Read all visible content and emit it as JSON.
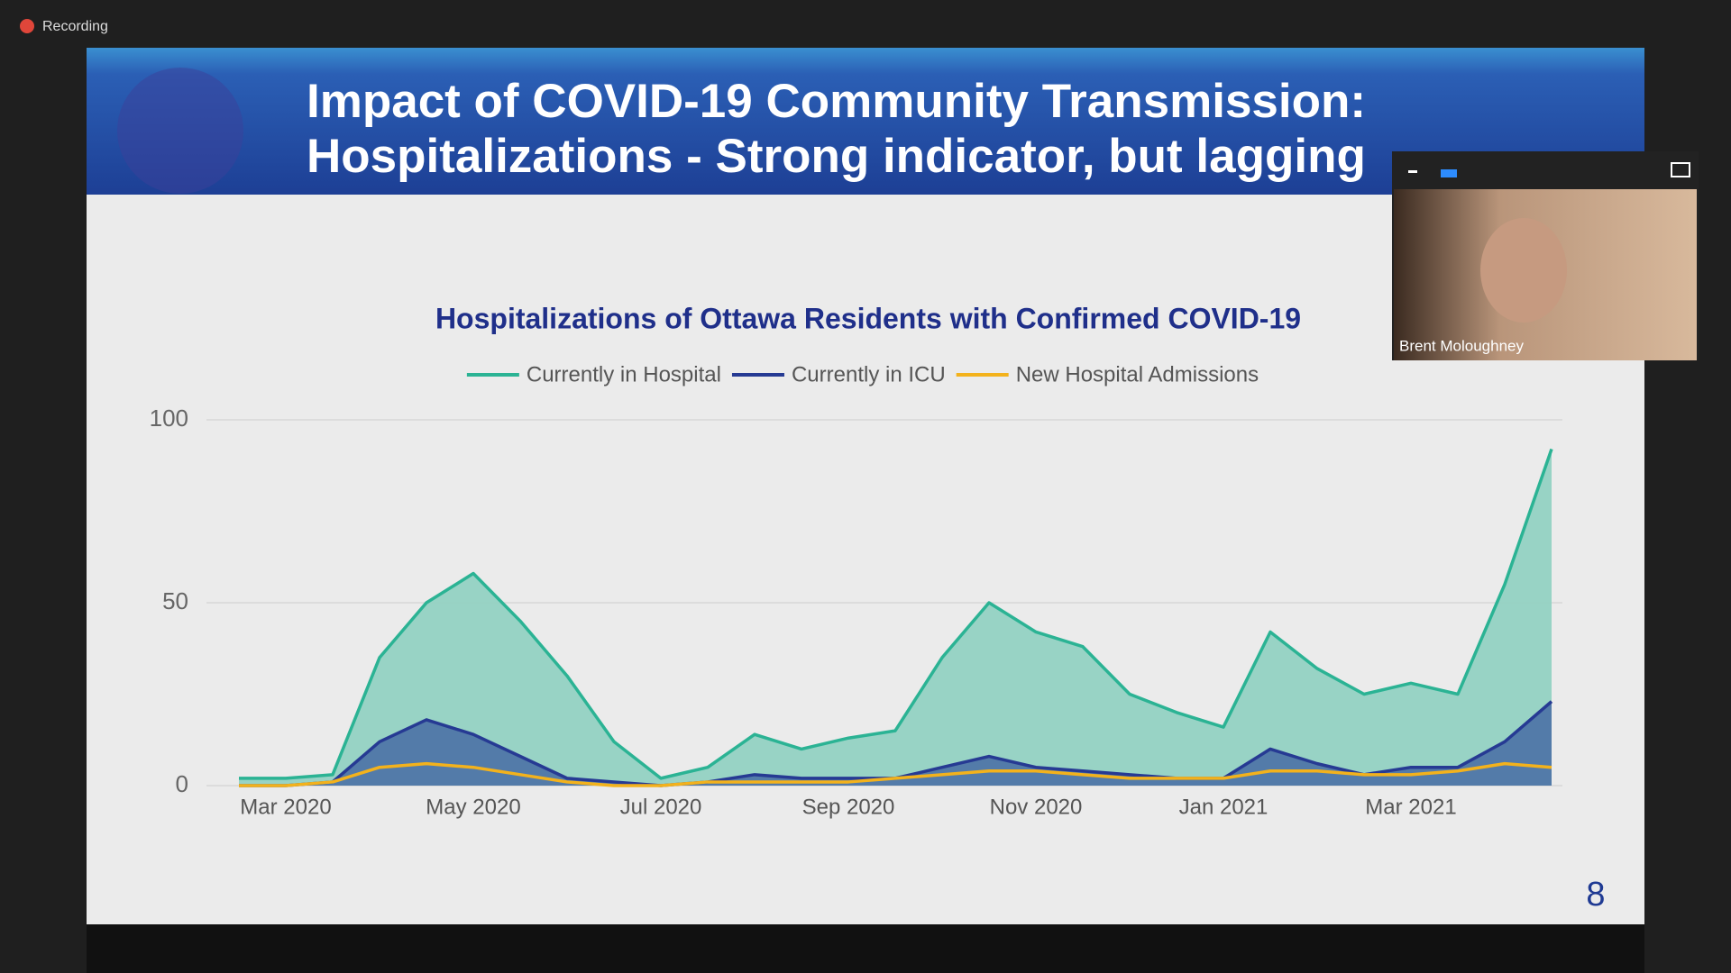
{
  "ui": {
    "recording": "Recording",
    "slide_title": [
      "Impact of COVID-19 Community Transmission:",
      "Hospitalizations - Strong indicator, but lagging"
    ],
    "page_number": "8",
    "participant": "Brent Moloughney"
  },
  "chart_data": {
    "type": "area",
    "title": "Hospitalizations of Ottawa Residents with Confirmed COVID-19",
    "categories": [
      null,
      "Mar 2020",
      null,
      null,
      null,
      "May 2020",
      null,
      null,
      null,
      "Jul 2020",
      null,
      null,
      null,
      "Sep 2020",
      null,
      null,
      null,
      "Nov 2020",
      null,
      null,
      null,
      "Jan 2021",
      null,
      null,
      null,
      "Mar 2021",
      null,
      null,
      null
    ],
    "series": [
      {
        "name": "Currently in Hospital",
        "color": "#2bb394",
        "fill": "#93d2c3",
        "values": [
          2,
          2,
          3,
          35,
          50,
          58,
          45,
          30,
          12,
          2,
          5,
          14,
          10,
          13,
          15,
          35,
          50,
          42,
          38,
          25,
          20,
          16,
          42,
          32,
          25,
          28,
          25,
          55,
          92
        ]
      },
      {
        "name": "Currently in ICU",
        "color": "#263a93",
        "fill": "#4f76a8",
        "values": [
          0,
          0,
          1,
          12,
          18,
          14,
          8,
          2,
          1,
          0,
          1,
          3,
          2,
          2,
          2,
          5,
          8,
          5,
          4,
          3,
          2,
          2,
          10,
          6,
          3,
          5,
          5,
          12,
          23
        ]
      },
      {
        "name": "New Hospital Admissions",
        "color": "#f3b21c",
        "values": [
          0,
          0,
          1,
          5,
          6,
          5,
          3,
          1,
          0,
          0,
          1,
          1,
          1,
          1,
          2,
          3,
          4,
          4,
          3,
          2,
          2,
          2,
          4,
          4,
          3,
          3,
          4,
          6,
          5
        ]
      }
    ],
    "ylim": [
      0,
      100
    ],
    "yticks": [
      0,
      50,
      100
    ],
    "grid": true,
    "legend": "top"
  }
}
